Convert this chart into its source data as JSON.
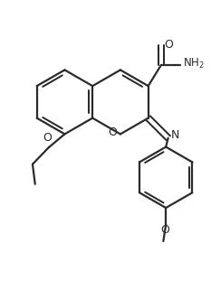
{
  "bg_color": "#ffffff",
  "line_color": "#2a2a2a",
  "line_width": 1.6,
  "figsize": [
    2.33,
    3.11
  ],
  "dpi": 100,
  "xlim": [
    -2.8,
    3.5
  ],
  "ylim": [
    -4.8,
    2.8
  ]
}
